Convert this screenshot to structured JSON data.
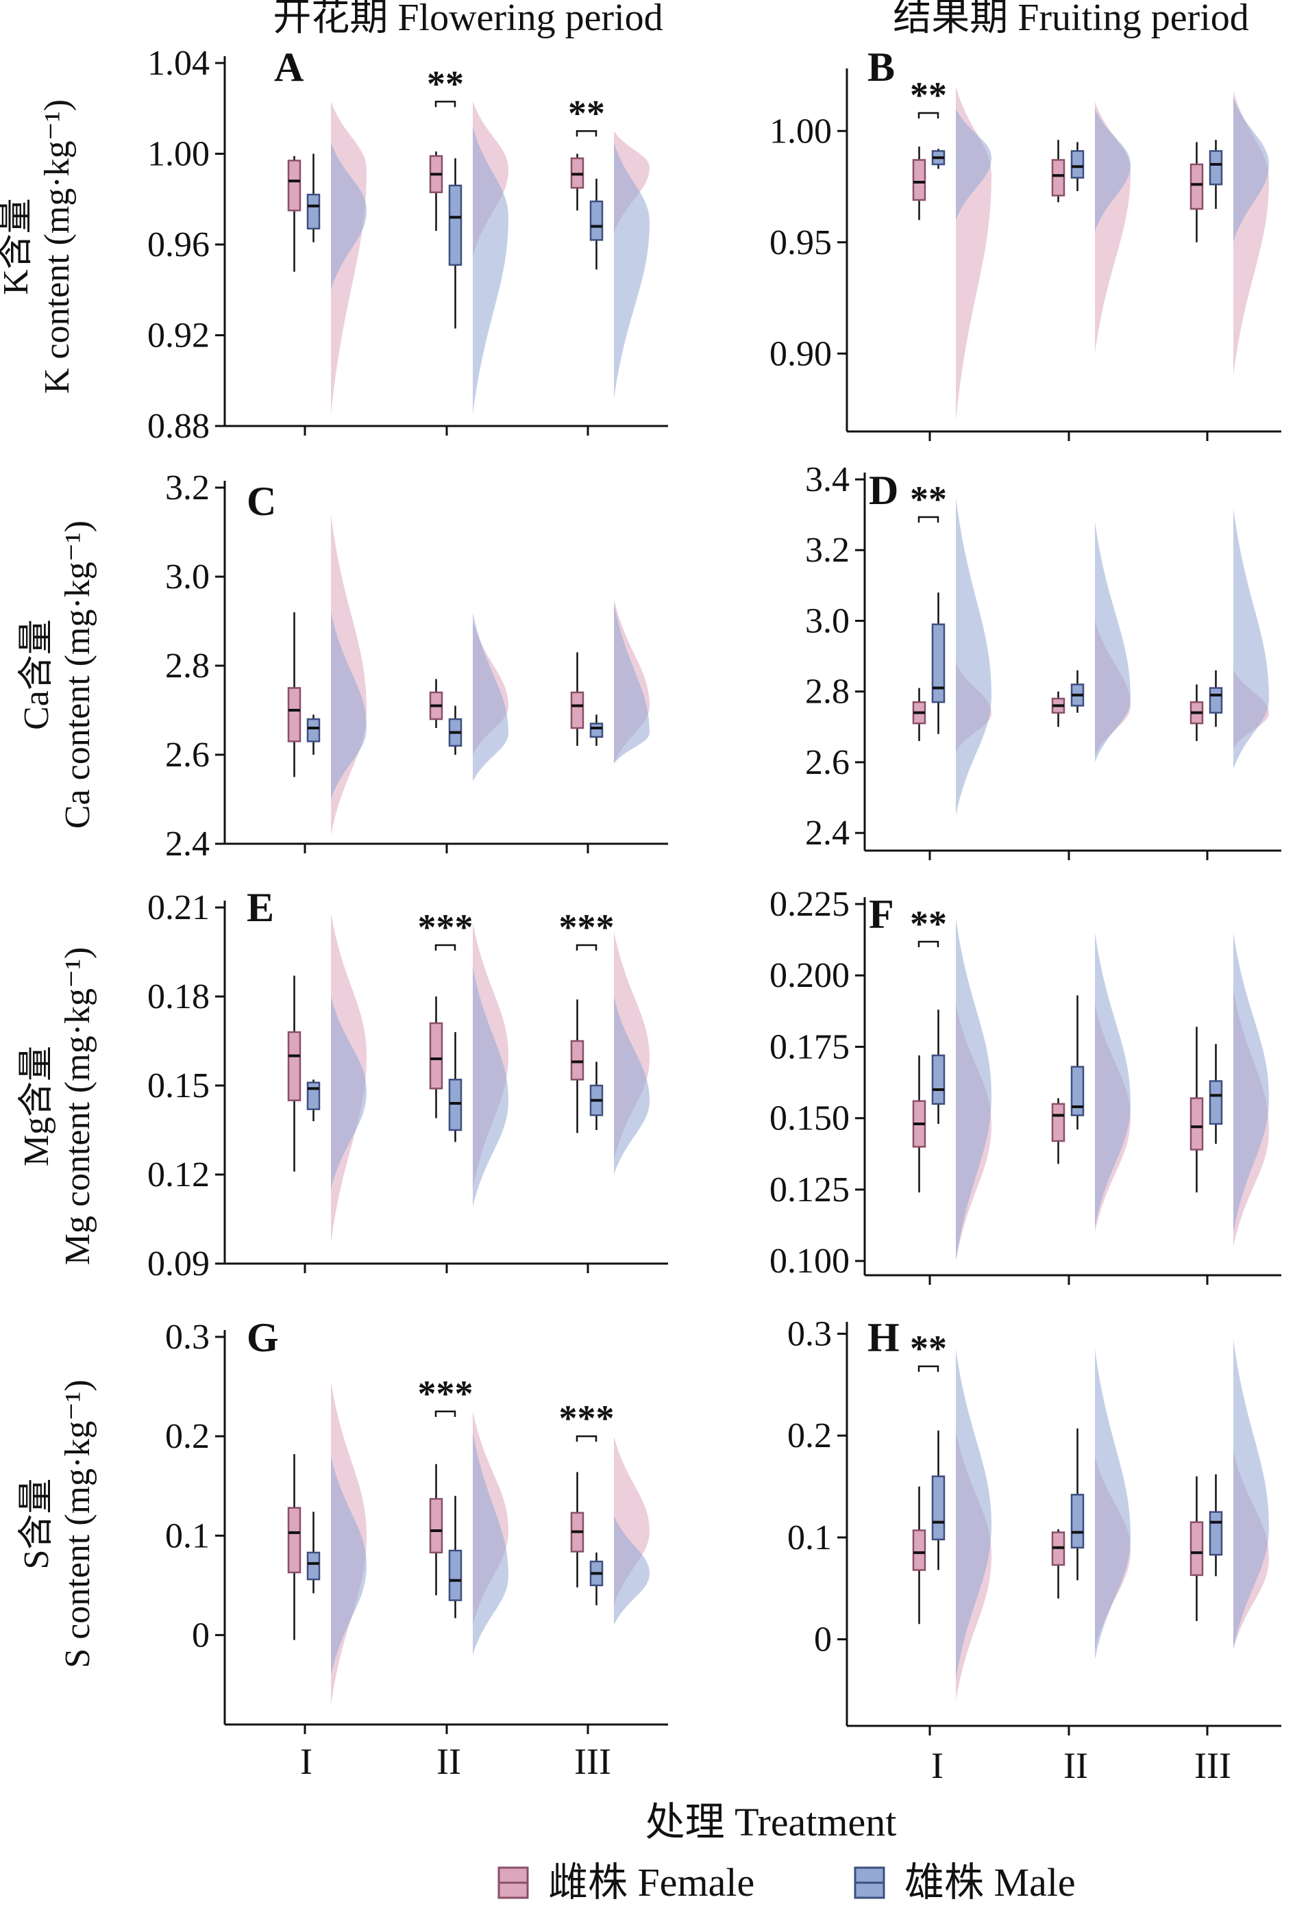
{
  "figure": {
    "column_titles": [
      "开花期 Flowering  period",
      "结果期 Fruiting  period"
    ],
    "x_title": "处理 Treatment",
    "legend": [
      {
        "label": "雌株 Female",
        "key": "female"
      },
      {
        "label": "雄株 Male",
        "key": "male"
      }
    ]
  },
  "colors": {
    "female_fill": "#dca7bd",
    "female_edge": "#8a4f68",
    "male_fill": "#94a8d4",
    "male_edge": "#3d4f7e",
    "axis": "#111111"
  },
  "chart_data": [
    {
      "panel": "A",
      "period": "flowering",
      "element": "K",
      "type": "box-violin",
      "ylabel_cn": "K含量",
      "ylabel_en": "K content (mg·kg⁻¹)",
      "ylim": [
        0.88,
        1.04
      ],
      "ticks": [
        "1.04",
        "1.00",
        "0.96",
        "0.92",
        "0.88"
      ],
      "categories": [
        "I",
        "II",
        "III"
      ],
      "significance": [
        "",
        "**",
        "**"
      ],
      "female": [
        {
          "whislo": 0.948,
          "q1": 0.975,
          "med": 0.988,
          "q3": 0.997,
          "whishi": 0.999,
          "dmin": 0.885,
          "dmax": 1.023,
          "dpeak": 0.993
        },
        {
          "whislo": 0.966,
          "q1": 0.983,
          "med": 0.991,
          "q3": 0.999,
          "whishi": 1.001,
          "dmin": 0.955,
          "dmax": 1.023,
          "dpeak": 0.993
        },
        {
          "whislo": 0.975,
          "q1": 0.985,
          "med": 0.991,
          "q3": 0.998,
          "whishi": 1.0,
          "dmin": 0.965,
          "dmax": 1.01,
          "dpeak": 0.994
        }
      ],
      "male": [
        {
          "whislo": 0.961,
          "q1": 0.967,
          "med": 0.977,
          "q3": 0.982,
          "whishi": 1.0,
          "dmin": 0.94,
          "dmax": 1.005,
          "dpeak": 0.975
        },
        {
          "whislo": 0.923,
          "q1": 0.951,
          "med": 0.972,
          "q3": 0.986,
          "whishi": 0.998,
          "dmin": 0.885,
          "dmax": 1.012,
          "dpeak": 0.972
        },
        {
          "whislo": 0.949,
          "q1": 0.962,
          "med": 0.968,
          "q3": 0.979,
          "whishi": 0.989,
          "dmin": 0.892,
          "dmax": 1.005,
          "dpeak": 0.97
        }
      ]
    },
    {
      "panel": "B",
      "period": "fruiting",
      "element": "K",
      "type": "box-violin",
      "ylabel_cn": "",
      "ylabel_en": "",
      "ylim": [
        0.865,
        1.025
      ],
      "ticks": [
        "1.00",
        "0.95",
        "0.90"
      ],
      "categories": [
        "I",
        "II",
        "III"
      ],
      "significance": [
        "**",
        "",
        ""
      ],
      "female": [
        {
          "whislo": 0.96,
          "q1": 0.969,
          "med": 0.977,
          "q3": 0.987,
          "whishi": 0.993,
          "dmin": 0.87,
          "dmax": 1.02,
          "dpeak": 0.98
        },
        {
          "whislo": 0.968,
          "q1": 0.971,
          "med": 0.98,
          "q3": 0.987,
          "whishi": 0.996,
          "dmin": 0.9,
          "dmax": 1.013,
          "dpeak": 0.982
        },
        {
          "whislo": 0.95,
          "q1": 0.965,
          "med": 0.976,
          "q3": 0.985,
          "whishi": 0.995,
          "dmin": 0.89,
          "dmax": 1.018,
          "dpeak": 0.978
        }
      ],
      "male": [
        {
          "whislo": 0.983,
          "q1": 0.985,
          "med": 0.988,
          "q3": 0.991,
          "whishi": 0.992,
          "dmin": 0.96,
          "dmax": 1.01,
          "dpeak": 0.988
        },
        {
          "whislo": 0.973,
          "q1": 0.979,
          "med": 0.984,
          "q3": 0.991,
          "whishi": 0.995,
          "dmin": 0.955,
          "dmax": 1.01,
          "dpeak": 0.985
        },
        {
          "whislo": 0.965,
          "q1": 0.976,
          "med": 0.985,
          "q3": 0.991,
          "whishi": 0.996,
          "dmin": 0.95,
          "dmax": 1.015,
          "dpeak": 0.985
        }
      ]
    },
    {
      "panel": "C",
      "period": "flowering",
      "element": "Ca",
      "type": "box-violin",
      "ylabel_cn": "Ca含量",
      "ylabel_en": "Ca content (mg·kg⁻¹)",
      "ylim": [
        2.4,
        3.2
      ],
      "ticks": [
        "3.2",
        "3.0",
        "2.8",
        "2.6",
        "2.4"
      ],
      "categories": [
        "I",
        "II",
        "III"
      ],
      "significance": [
        "",
        "",
        ""
      ],
      "female": [
        {
          "whislo": 2.55,
          "q1": 2.63,
          "med": 2.7,
          "q3": 2.75,
          "whishi": 2.92,
          "dmin": 2.42,
          "dmax": 3.14,
          "dpeak": 2.7
        },
        {
          "whislo": 2.66,
          "q1": 2.68,
          "med": 2.71,
          "q3": 2.74,
          "whishi": 2.77,
          "dmin": 2.6,
          "dmax": 2.9,
          "dpeak": 2.71
        },
        {
          "whislo": 2.62,
          "q1": 2.66,
          "med": 2.71,
          "q3": 2.74,
          "whishi": 2.83,
          "dmin": 2.58,
          "dmax": 2.95,
          "dpeak": 2.71
        }
      ],
      "male": [
        {
          "whislo": 2.6,
          "q1": 2.63,
          "med": 2.66,
          "q3": 2.68,
          "whishi": 2.69,
          "dmin": 2.5,
          "dmax": 2.92,
          "dpeak": 2.66
        },
        {
          "whislo": 2.6,
          "q1": 2.62,
          "med": 2.65,
          "q3": 2.68,
          "whishi": 2.71,
          "dmin": 2.54,
          "dmax": 2.92,
          "dpeak": 2.65
        },
        {
          "whislo": 2.62,
          "q1": 2.64,
          "med": 2.66,
          "q3": 2.67,
          "whishi": 2.69,
          "dmin": 2.58,
          "dmax": 2.94,
          "dpeak": 2.65
        }
      ]
    },
    {
      "panel": "D",
      "period": "fruiting",
      "element": "Ca",
      "type": "box-violin",
      "ylabel_cn": "",
      "ylabel_en": "",
      "ylim": [
        2.35,
        3.4
      ],
      "ticks": [
        "3.4",
        "3.2",
        "3.0",
        "2.8",
        "2.6",
        "2.4"
      ],
      "categories": [
        "I",
        "II",
        "III"
      ],
      "significance": [
        "**",
        "",
        ""
      ],
      "female": [
        {
          "whislo": 2.66,
          "q1": 2.71,
          "med": 2.74,
          "q3": 2.77,
          "whishi": 2.81,
          "dmin": 2.63,
          "dmax": 2.88,
          "dpeak": 2.74
        },
        {
          "whislo": 2.7,
          "q1": 2.74,
          "med": 2.76,
          "q3": 2.78,
          "whishi": 2.8,
          "dmin": 2.62,
          "dmax": 3.0,
          "dpeak": 2.76
        },
        {
          "whislo": 2.66,
          "q1": 2.71,
          "med": 2.74,
          "q3": 2.77,
          "whishi": 2.82,
          "dmin": 2.64,
          "dmax": 2.86,
          "dpeak": 2.74
        }
      ],
      "male": [
        {
          "whislo": 2.68,
          "q1": 2.77,
          "med": 2.81,
          "q3": 2.99,
          "whishi": 3.08,
          "dmin": 2.45,
          "dmax": 3.35,
          "dpeak": 2.79
        },
        {
          "whislo": 2.74,
          "q1": 2.76,
          "med": 2.79,
          "q3": 2.82,
          "whishi": 2.86,
          "dmin": 2.6,
          "dmax": 3.28,
          "dpeak": 2.78
        },
        {
          "whislo": 2.7,
          "q1": 2.74,
          "med": 2.79,
          "q3": 2.81,
          "whishi": 2.86,
          "dmin": 2.58,
          "dmax": 3.32,
          "dpeak": 2.78
        }
      ]
    },
    {
      "panel": "E",
      "period": "flowering",
      "element": "Mg",
      "type": "box-violin",
      "ylabel_cn": "Mg含量",
      "ylabel_en": "Mg content (mg·kg⁻¹)",
      "ylim": [
        0.09,
        0.21
      ],
      "ticks": [
        "0.21",
        "0.18",
        "0.15",
        "0.12",
        "0.09"
      ],
      "categories": [
        "I",
        "II",
        "III"
      ],
      "significance": [
        "",
        "***",
        "***"
      ],
      "female": [
        {
          "whislo": 0.121,
          "q1": 0.145,
          "med": 0.16,
          "q3": 0.168,
          "whishi": 0.187,
          "dmin": 0.097,
          "dmax": 0.208,
          "dpeak": 0.16
        },
        {
          "whislo": 0.139,
          "q1": 0.149,
          "med": 0.159,
          "q3": 0.171,
          "whishi": 0.18,
          "dmin": 0.115,
          "dmax": 0.205,
          "dpeak": 0.16
        },
        {
          "whislo": 0.134,
          "q1": 0.152,
          "med": 0.158,
          "q3": 0.165,
          "whishi": 0.179,
          "dmin": 0.125,
          "dmax": 0.202,
          "dpeak": 0.159
        }
      ],
      "male": [
        {
          "whislo": 0.138,
          "q1": 0.142,
          "med": 0.149,
          "q3": 0.151,
          "whishi": 0.152,
          "dmin": 0.115,
          "dmax": 0.18,
          "dpeak": 0.148
        },
        {
          "whislo": 0.131,
          "q1": 0.135,
          "med": 0.144,
          "q3": 0.152,
          "whishi": 0.168,
          "dmin": 0.109,
          "dmax": 0.19,
          "dpeak": 0.145
        },
        {
          "whislo": 0.135,
          "q1": 0.14,
          "med": 0.145,
          "q3": 0.15,
          "whishi": 0.158,
          "dmin": 0.12,
          "dmax": 0.18,
          "dpeak": 0.145
        }
      ]
    },
    {
      "panel": "F",
      "period": "fruiting",
      "element": "Mg",
      "type": "box-violin",
      "ylabel_cn": "",
      "ylabel_en": "",
      "ylim": [
        0.095,
        0.225
      ],
      "ticks": [
        "0.225",
        "0.200",
        "0.175",
        "0.150",
        "0.125",
        "0.100"
      ],
      "categories": [
        "I",
        "II",
        "III"
      ],
      "significance": [
        "**",
        "",
        ""
      ],
      "female": [
        {
          "whislo": 0.124,
          "q1": 0.14,
          "med": 0.148,
          "q3": 0.156,
          "whishi": 0.172,
          "dmin": 0.1,
          "dmax": 0.19,
          "dpeak": 0.148
        },
        {
          "whislo": 0.134,
          "q1": 0.142,
          "med": 0.151,
          "q3": 0.155,
          "whishi": 0.157,
          "dmin": 0.11,
          "dmax": 0.19,
          "dpeak": 0.15
        },
        {
          "whislo": 0.124,
          "q1": 0.139,
          "med": 0.147,
          "q3": 0.157,
          "whishi": 0.182,
          "dmin": 0.105,
          "dmax": 0.195,
          "dpeak": 0.146
        }
      ],
      "male": [
        {
          "whislo": 0.148,
          "q1": 0.155,
          "med": 0.16,
          "q3": 0.172,
          "whishi": 0.188,
          "dmin": 0.1,
          "dmax": 0.22,
          "dpeak": 0.158
        },
        {
          "whislo": 0.146,
          "q1": 0.151,
          "med": 0.154,
          "q3": 0.168,
          "whishi": 0.193,
          "dmin": 0.112,
          "dmax": 0.215,
          "dpeak": 0.155
        },
        {
          "whislo": 0.141,
          "q1": 0.148,
          "med": 0.158,
          "q3": 0.163,
          "whishi": 0.176,
          "dmin": 0.11,
          "dmax": 0.215,
          "dpeak": 0.157
        }
      ]
    },
    {
      "panel": "G",
      "period": "flowering",
      "element": "S",
      "type": "box-violin",
      "ylabel_cn": "S含量",
      "ylabel_en": "S content (mg·kg⁻¹)",
      "ylim": [
        -0.09,
        0.3
      ],
      "ticks": [
        "0.3",
        "0.2",
        "0.1",
        "0"
      ],
      "categories": [
        "I",
        "II",
        "III"
      ],
      "significance": [
        "",
        "***",
        "***"
      ],
      "female": [
        {
          "whislo": -0.005,
          "q1": 0.063,
          "med": 0.103,
          "q3": 0.128,
          "whishi": 0.182,
          "dmin": -0.07,
          "dmax": 0.255,
          "dpeak": 0.1
        },
        {
          "whislo": 0.04,
          "q1": 0.083,
          "med": 0.105,
          "q3": 0.137,
          "whishi": 0.172,
          "dmin": 0.01,
          "dmax": 0.225,
          "dpeak": 0.105
        },
        {
          "whislo": 0.048,
          "q1": 0.084,
          "med": 0.104,
          "q3": 0.123,
          "whishi": 0.164,
          "dmin": 0.03,
          "dmax": 0.2,
          "dpeak": 0.105
        }
      ],
      "male": [
        {
          "whislo": 0.042,
          "q1": 0.056,
          "med": 0.072,
          "q3": 0.083,
          "whishi": 0.124,
          "dmin": -0.04,
          "dmax": 0.18,
          "dpeak": 0.07
        },
        {
          "whislo": 0.017,
          "q1": 0.035,
          "med": 0.055,
          "q3": 0.085,
          "whishi": 0.14,
          "dmin": -0.02,
          "dmax": 0.205,
          "dpeak": 0.06
        },
        {
          "whislo": 0.03,
          "q1": 0.05,
          "med": 0.062,
          "q3": 0.074,
          "whishi": 0.083,
          "dmin": 0.01,
          "dmax": 0.12,
          "dpeak": 0.062
        }
      ]
    },
    {
      "panel": "H",
      "period": "fruiting",
      "element": "S",
      "type": "box-violin",
      "ylabel_cn": "",
      "ylabel_en": "",
      "ylim": [
        -0.085,
        0.305
      ],
      "ticks": [
        "0.3",
        "0.2",
        "0.1",
        "0"
      ],
      "categories": [
        "I",
        "II",
        "III"
      ],
      "significance": [
        "**",
        "",
        ""
      ],
      "female": [
        {
          "whislo": 0.015,
          "q1": 0.068,
          "med": 0.085,
          "q3": 0.107,
          "whishi": 0.15,
          "dmin": -0.06,
          "dmax": 0.205,
          "dpeak": 0.082
        },
        {
          "whislo": 0.04,
          "q1": 0.073,
          "med": 0.09,
          "q3": 0.105,
          "whishi": 0.108,
          "dmin": -0.01,
          "dmax": 0.18,
          "dpeak": 0.088
        },
        {
          "whislo": 0.018,
          "q1": 0.063,
          "med": 0.085,
          "q3": 0.115,
          "whishi": 0.16,
          "dmin": -0.01,
          "dmax": 0.185,
          "dpeak": 0.08
        }
      ],
      "male": [
        {
          "whislo": 0.068,
          "q1": 0.098,
          "med": 0.115,
          "q3": 0.16,
          "whishi": 0.205,
          "dmin": -0.04,
          "dmax": 0.285,
          "dpeak": 0.112
        },
        {
          "whislo": 0.058,
          "q1": 0.09,
          "med": 0.105,
          "q3": 0.142,
          "whishi": 0.207,
          "dmin": -0.02,
          "dmax": 0.285,
          "dpeak": 0.1
        },
        {
          "whislo": 0.062,
          "q1": 0.083,
          "med": 0.115,
          "q3": 0.125,
          "whishi": 0.162,
          "dmin": -0.01,
          "dmax": 0.295,
          "dpeak": 0.11
        }
      ]
    }
  ]
}
